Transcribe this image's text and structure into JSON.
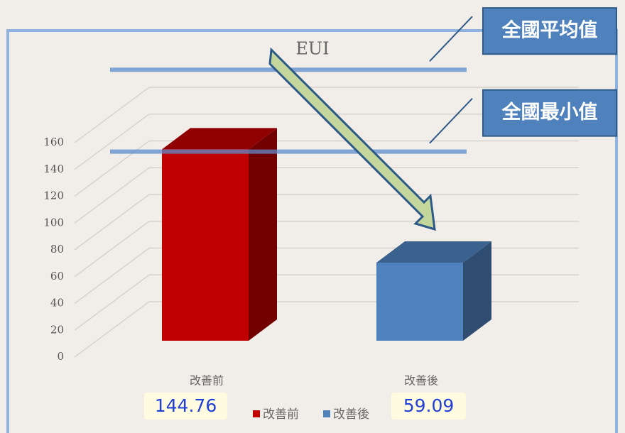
{
  "chart_data": {
    "type": "bar3d",
    "title": "EUI",
    "categories": [
      "改善前",
      "改善後"
    ],
    "values": [
      144.76,
      59.09
    ],
    "colors": [
      "#c00000",
      "#4f81bd"
    ],
    "ylim": [
      0,
      160
    ],
    "yticks": [
      0,
      20,
      40,
      60,
      80,
      100,
      120,
      140,
      160
    ],
    "grid": true,
    "legend": "bottom",
    "annotations": [
      {
        "text": "全國平均值",
        "value": 205
      },
      {
        "text": "全國最小值",
        "value": 143
      }
    ]
  }
}
